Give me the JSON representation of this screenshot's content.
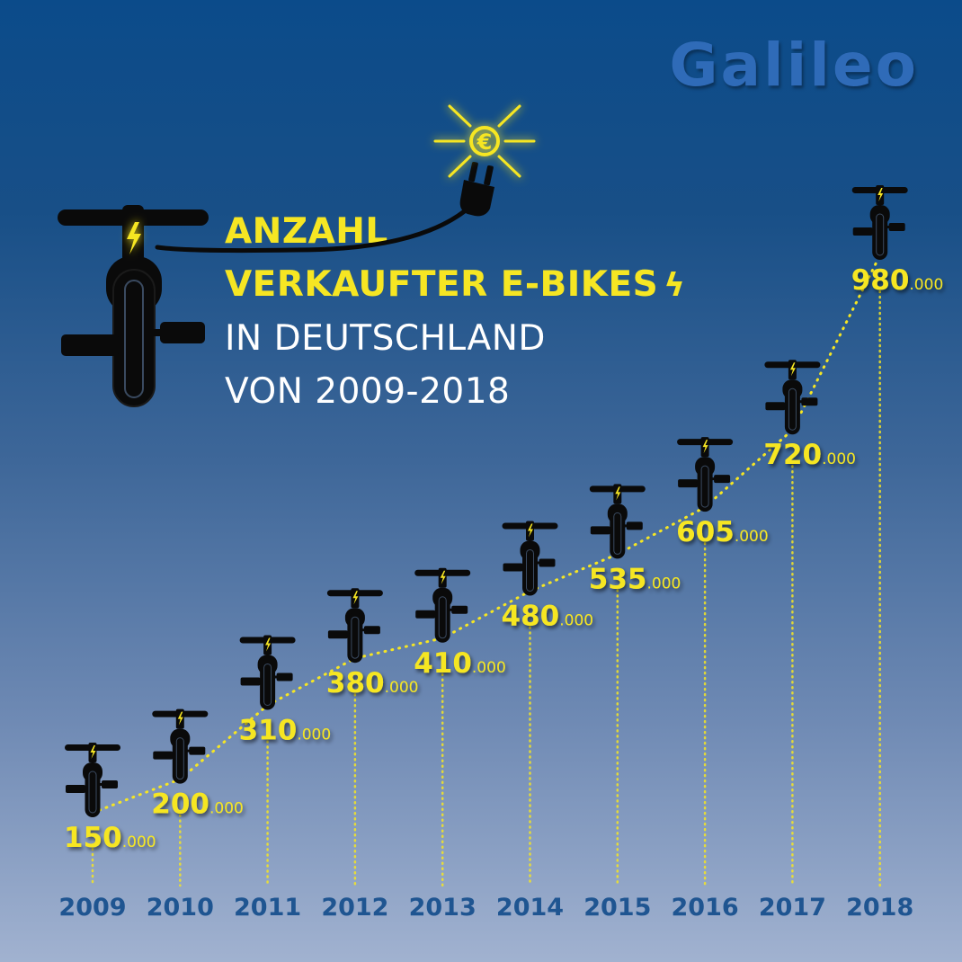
{
  "brand": {
    "logo_text": "Galileo"
  },
  "title_lines": [
    "ANZAHL",
    "VERKAUFTER E-BIKES",
    "IN DEUTSCHLAND",
    "VON 2009-2018"
  ],
  "icons": {
    "title_bolt": "lightning-bolt-icon",
    "plug": "plug-icon",
    "euro": "euro-icon",
    "bike": "e-bike-icon"
  },
  "colors": {
    "accent_yellow": "#f6e623",
    "year_label": "#1f5591",
    "bike_black": "#0a0a0a"
  },
  "chart_data": {
    "type": "line",
    "categories": [
      "2009",
      "2010",
      "2011",
      "2012",
      "2013",
      "2014",
      "2015",
      "2016",
      "2017",
      "2018"
    ],
    "values": [
      150000,
      200000,
      310000,
      380000,
      410000,
      480000,
      535000,
      605000,
      720000,
      980000
    ],
    "labels": [
      {
        "major": "150",
        "minor": ".000"
      },
      {
        "major": "200",
        "minor": ".000"
      },
      {
        "major": "310",
        "minor": ".000"
      },
      {
        "major": "380",
        "minor": ".000"
      },
      {
        "major": "410",
        "minor": ".000"
      },
      {
        "major": "480",
        "minor": ".000"
      },
      {
        "major": "535",
        "minor": ".000"
      },
      {
        "major": "605",
        "minor": ".000"
      },
      {
        "major": "720",
        "minor": ".000"
      },
      {
        "major": "980",
        "minor": ".000"
      }
    ],
    "title": "ANZAHL VERKAUFTER E-BIKES IN DEUTSCHLAND VON 2009-2018",
    "grid": false,
    "line_style": "dotted"
  }
}
